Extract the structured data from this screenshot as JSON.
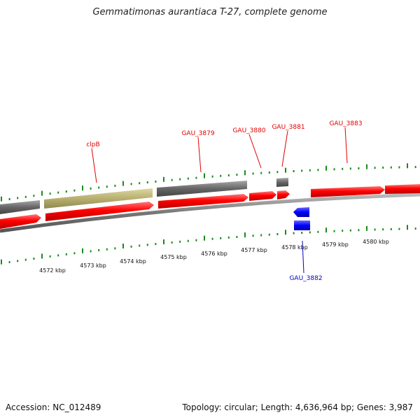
{
  "title": "Gemmatimonas aurantiaca T-27, complete genome",
  "footer": {
    "accession": "Accession: NC_012489",
    "summary": "Topology: circular; Length: 4,636,964 bp; Genes: 3,987"
  },
  "colors": {
    "cds_forward": "#ff0000",
    "cds_reverse": "#0000ff",
    "gene_grey": "#666666",
    "gene_khaki": "#b8b070",
    "tick": "#1a8a1a",
    "backbone": "#888888"
  },
  "scale_labels": [
    "4572 kbp",
    "4573 kbp",
    "4574 kbp",
    "4575 kbp",
    "4576 kbp",
    "4577 kbp",
    "4578 kbp",
    "4579 kbp",
    "4580 kbp"
  ],
  "genes": [
    {
      "label": "clpB",
      "strand": "forward",
      "color": "red"
    },
    {
      "label": "GAU_3879",
      "strand": "forward",
      "color": "red"
    },
    {
      "label": "GAU_3880",
      "strand": "forward",
      "color": "red"
    },
    {
      "label": "GAU_3881",
      "strand": "forward",
      "color": "red"
    },
    {
      "label": "GAU_3882",
      "strand": "reverse",
      "color": "blue"
    },
    {
      "label": "GAU_3883",
      "strand": "forward",
      "color": "red"
    }
  ]
}
